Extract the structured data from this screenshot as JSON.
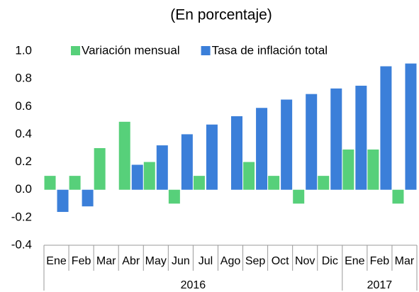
{
  "chart_data": {
    "type": "bar",
    "title": "(En porcentaje)",
    "categories": [
      "Ene",
      "Feb",
      "Mar",
      "Abr",
      "May",
      "Jun",
      "Jul",
      "Ago",
      "Sep",
      "Oct",
      "Nov",
      "Dic",
      "Ene",
      "Feb",
      "Mar"
    ],
    "category_groups": [
      "2016",
      null,
      null,
      null,
      null,
      null,
      null,
      null,
      null,
      null,
      null,
      null,
      "2017",
      null,
      null
    ],
    "series": [
      {
        "name": "Variación mensual",
        "color": "#57d07a",
        "values": [
          0.1,
          0.1,
          0.3,
          0.49,
          0.2,
          -0.1,
          0.1,
          0,
          0.2,
          0.1,
          -0.1,
          0.1,
          0.29,
          0.29,
          -0.1
        ]
      },
      {
        "name": "Tasa de inflación total",
        "color": "#3b7fd9",
        "values": [
          -0.16,
          -0.12,
          0,
          0.18,
          0.32,
          0.4,
          0.47,
          0.53,
          0.59,
          0.65,
          0.69,
          0.73,
          0.75,
          0.89,
          0.91
        ]
      }
    ],
    "ylim": [
      -0.4,
      1.0
    ],
    "yticks": [
      {
        "value": 1.0,
        "label": "1.0"
      },
      0.8,
      0.6,
      0.4,
      0.2,
      {
        "value": 0.0,
        "label": "0.0"
      },
      -0.2,
      -0.4
    ],
    "grid": false,
    "legend": "top"
  }
}
